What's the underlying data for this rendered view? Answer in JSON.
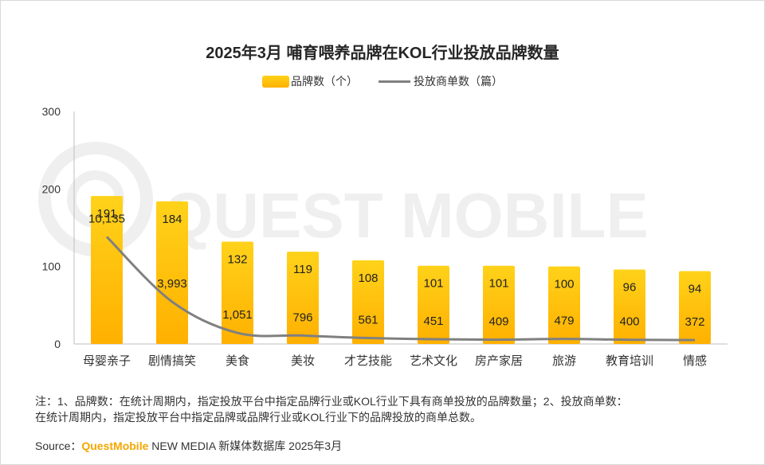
{
  "chart_data": {
    "type": "bar",
    "title": "2025年3月 哺育喂养品牌在KOL行业投放品牌数量",
    "categories": [
      "母婴亲子",
      "剧情搞笑",
      "美食",
      "美妆",
      "才艺技能",
      "艺术文化",
      "房产家居",
      "旅游",
      "教育培训",
      "情感"
    ],
    "series": [
      {
        "name": "品牌数（个）",
        "type": "bar",
        "axis": "left",
        "values": [
          191,
          184,
          132,
          119,
          108,
          101,
          101,
          100,
          96,
          94
        ],
        "labels": [
          "191",
          "184",
          "132",
          "119",
          "108",
          "101",
          "101",
          "100",
          "96",
          "94"
        ]
      },
      {
        "name": "投放商单数（篇）",
        "type": "line",
        "axis": "secondary",
        "values": [
          10135,
          3993,
          1051,
          796,
          561,
          451,
          409,
          479,
          400,
          372
        ],
        "labels": [
          "10,135",
          "3,993",
          "1,051",
          "796",
          "561",
          "451",
          "409",
          "479",
          "400",
          "372"
        ]
      }
    ],
    "yticks": [
      "0",
      "100",
      "200",
      "300"
    ],
    "ylim": [
      0,
      300
    ],
    "secondary_ylim": [
      0,
      22000
    ],
    "xlabel": "",
    "ylabel": "",
    "legend_position": "top-center",
    "colors": {
      "bar_top": "#ffd21a",
      "bar_bottom": "#ffb000",
      "line": "#808080"
    }
  },
  "watermark": "QUEST MOBILE",
  "notes": [
    "注：1、品牌数：在统计周期内，指定投放平台中指定品牌行业或KOL行业下具有商单投放的品牌数量；2、投放商单数：",
    "在统计周期内，指定投放平台中指定品牌或品牌行业或KOL行业下的品牌投放的商单总数。"
  ],
  "source": {
    "label": "Source：",
    "brand": "QuestMobile",
    "text": " NEW MEDIA 新媒体数据库 2025年3月"
  }
}
